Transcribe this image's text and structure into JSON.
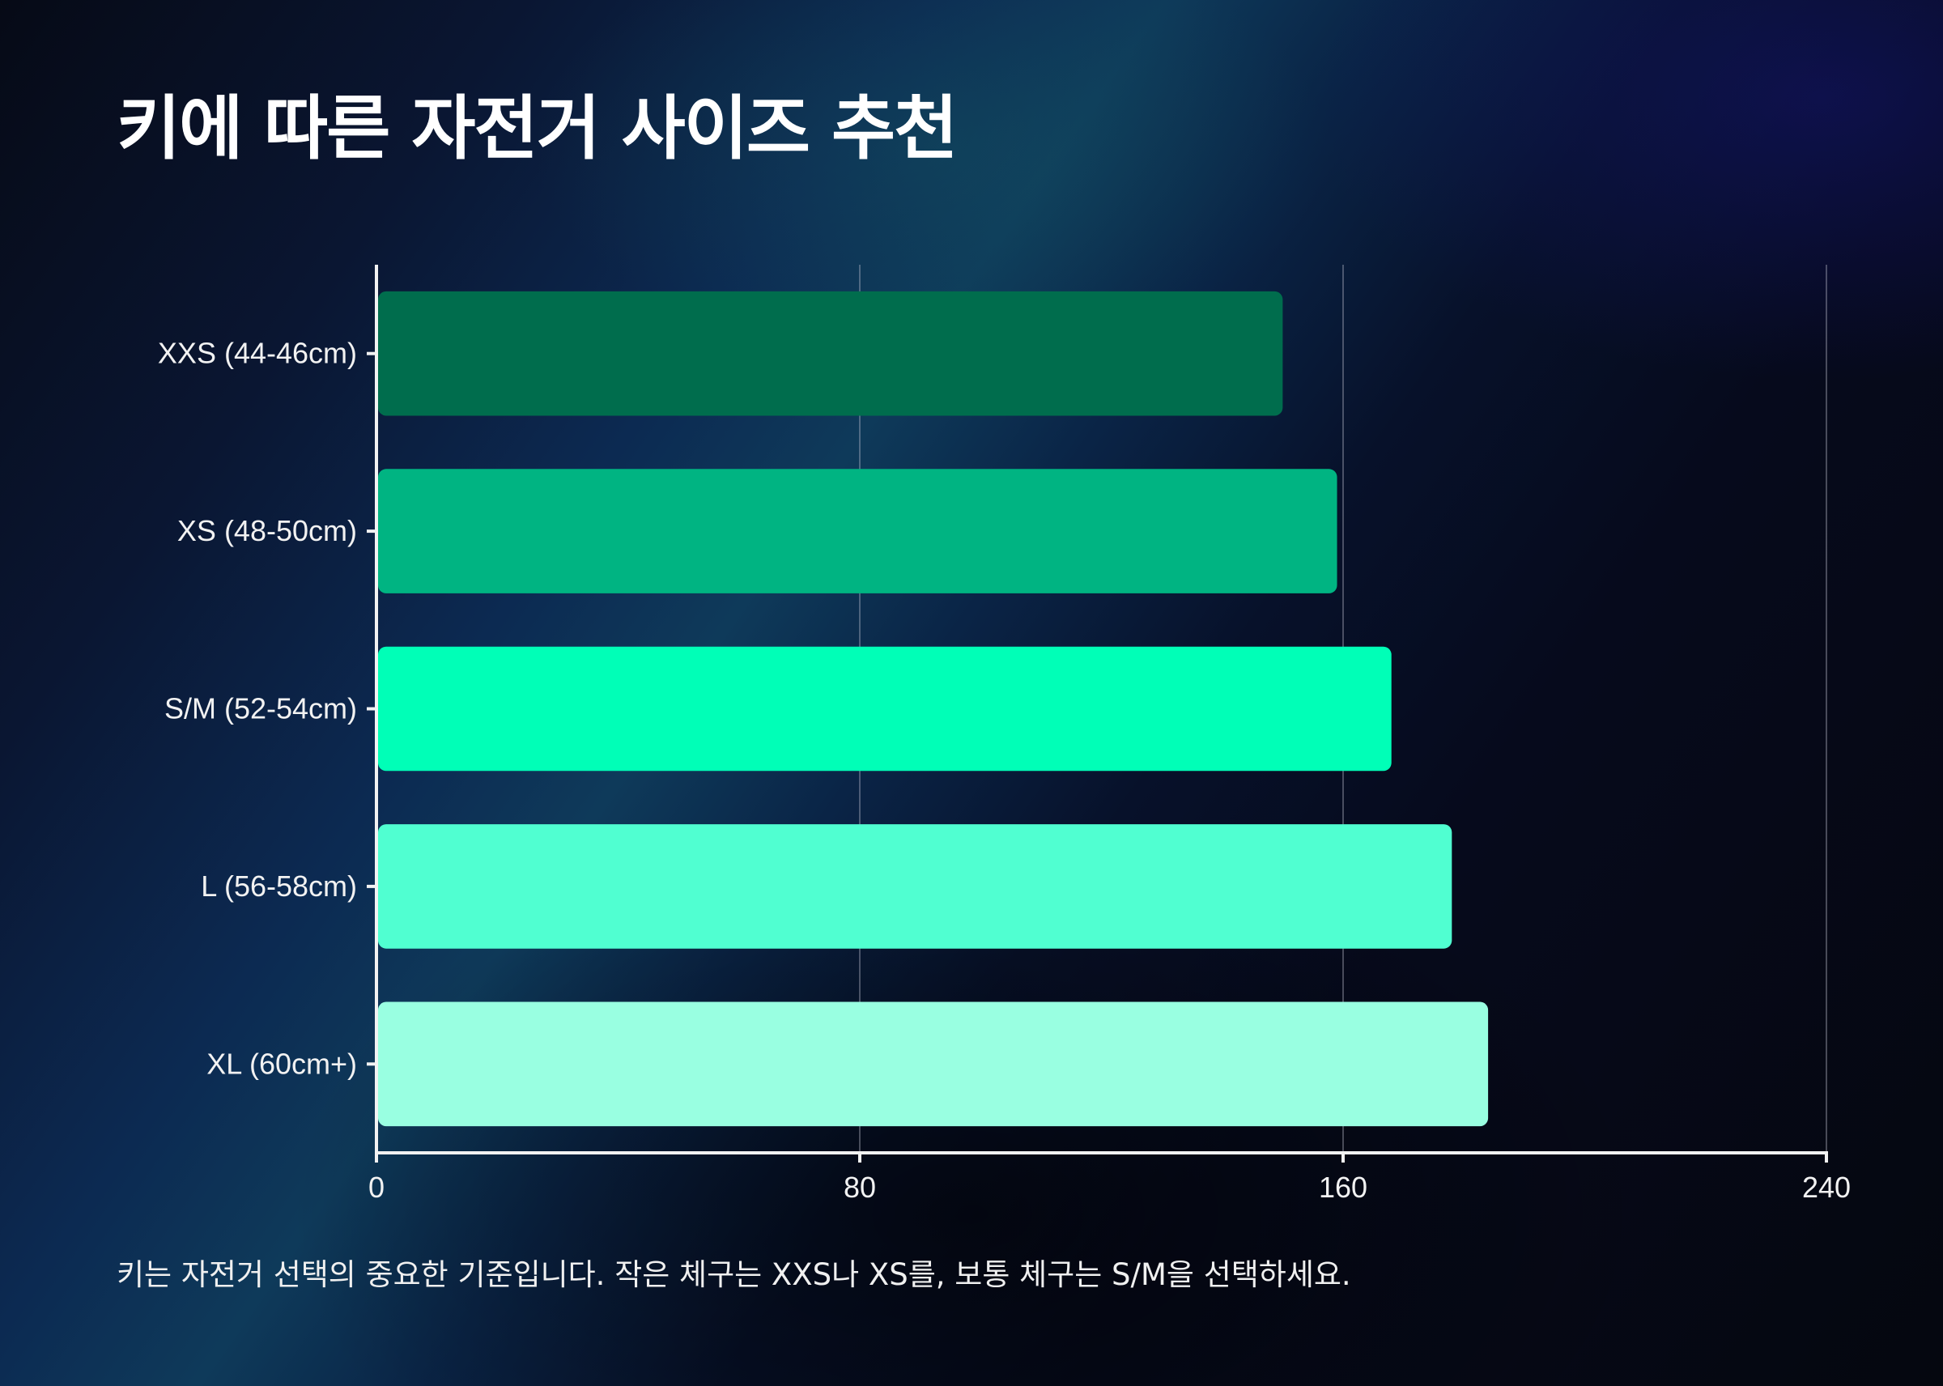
{
  "title": "키에 따른 자전거 사이즈 추천",
  "footnote": "키는 자전거 선택의 중요한 기준입니다. 작은 체구는 XXS나 XS를, 보통 체구는 S/M을 선택하세요.",
  "chart_data": {
    "type": "bar",
    "orientation": "horizontal",
    "categories": [
      "XXS (44-46cm)",
      "XS (48-50cm)",
      "S/M (52-54cm)",
      "L (56-58cm)",
      "XL (60cm+)"
    ],
    "values": [
      150,
      159,
      168,
      178,
      184
    ],
    "colors": [
      "#006d4d",
      "#00b482",
      "#00ffb7",
      "#50ffd1",
      "#99ffe1"
    ],
    "xlim": [
      0,
      240
    ],
    "xticks": [
      "0",
      "80",
      "160",
      "240"
    ],
    "grid": "vertical",
    "legend": "none"
  }
}
